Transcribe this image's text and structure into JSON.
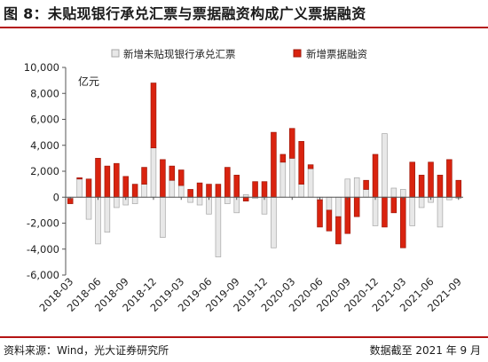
{
  "header": {
    "title": "图 8：未贴现银行承兑汇票与票据融资构成广义票据融资"
  },
  "footer": {
    "source": "资料来源：Wind，光大证券研究所",
    "cutoff": "数据截至 2021 年 9 月"
  },
  "colors": {
    "bankers_acceptance": "#e8e8e8",
    "bankers_acceptance_edge": "#a6a6a6",
    "bill_financing": "#d9230f",
    "bill_financing_edge": "#9e1a0c"
  },
  "chart_data": {
    "type": "bar",
    "stacked": true,
    "ylabel": "亿元",
    "ylim": [
      -6000,
      10000
    ],
    "yticks": [
      -6000,
      -4000,
      -2000,
      0,
      2000,
      4000,
      6000,
      8000,
      10000
    ],
    "ytick_labels": [
      "-6,000",
      "-4,000",
      "-2,000",
      "0",
      "2,000",
      "4,000",
      "6,000",
      "8,000",
      "10,000"
    ],
    "legend_position": "top",
    "x": [
      "2018-03",
      "2018-04",
      "2018-05",
      "2018-06",
      "2018-07",
      "2018-08",
      "2018-09",
      "2018-10",
      "2018-11",
      "2018-12",
      "2019-01",
      "2019-02",
      "2019-03",
      "2019-04",
      "2019-05",
      "2019-06",
      "2019-07",
      "2019-08",
      "2019-09",
      "2019-10",
      "2019-11",
      "2019-12",
      "2020-01",
      "2020-02",
      "2020-03",
      "2020-04",
      "2020-05",
      "2020-06",
      "2020-07",
      "2020-08",
      "2020-09",
      "2020-10",
      "2020-11",
      "2020-12",
      "2021-01",
      "2021-02",
      "2021-03",
      "2021-04",
      "2021-05",
      "2021-06",
      "2021-07",
      "2021-08",
      "2021-09"
    ],
    "x_tick_labels": [
      "2018-03",
      "2018-06",
      "2018-09",
      "2018-12",
      "2019-03",
      "2019-06",
      "2019-09",
      "2019-12",
      "2020-03",
      "2020-06",
      "2020-09",
      "2020-12",
      "2021-03",
      "2021-06",
      "2021-09"
    ],
    "series": [
      {
        "name": "新增未贴现银行承兑汇票",
        "values": [
          -100,
          1400,
          -1700,
          -3600,
          -2700,
          -800,
          -600,
          -500,
          1000,
          3800,
          -3100,
          1300,
          900,
          -400,
          -600,
          -1300,
          -4600,
          -500,
          -1200,
          200,
          -100,
          -1300,
          -3900,
          2700,
          3000,
          1000,
          2200,
          -200,
          -1000,
          -1500,
          1400,
          1500,
          600,
          -2200,
          4900,
          700,
          600,
          -2200,
          -800,
          -400,
          -2300,
          -200,
          -100
        ]
      },
      {
        "name": "新增票据融资",
        "values": [
          -400,
          100,
          1400,
          3000,
          2400,
          2600,
          1600,
          1000,
          1300,
          5000,
          2900,
          1100,
          1200,
          600,
          1100,
          1000,
          1000,
          2300,
          1700,
          -300,
          1200,
          1200,
          5000,
          600,
          2300,
          3300,
          300,
          -2100,
          -1600,
          -2100,
          -2800,
          -1500,
          700,
          3300,
          -2300,
          -1200,
          -3900,
          2700,
          1700,
          2700,
          1700,
          2900,
          1300
        ]
      }
    ]
  }
}
